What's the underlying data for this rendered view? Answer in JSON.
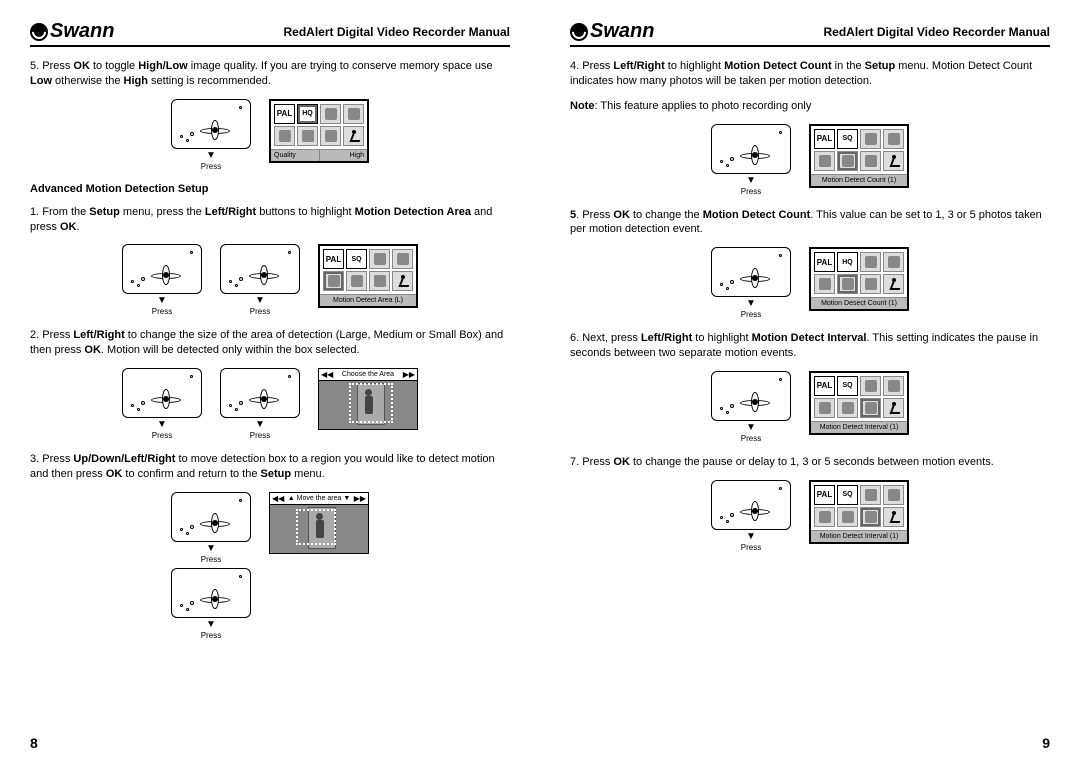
{
  "brand": "Swann",
  "manual_title": "RedAlert Digital Video Recorder Manual",
  "press_label": "Press",
  "left": {
    "page_num": "8",
    "step5": "5. Press <b>OK</b> to toggle <b>High/Low</b> image quality. If you are trying to conserve memory space use <b>Low</b> otherwise the <b>High</b> setting is recommended.",
    "screen1": {
      "footer_l": "Quality",
      "footer_r": "High",
      "pal": "PAL",
      "hq": "HQ"
    },
    "heading": "Advanced Motion Detection Setup",
    "step1": "1. From the <b>Setup</b> menu, press the <b>Left/Right</b> buttons to highlight <b>Motion Detection Area</b> and press <b>OK</b>.",
    "screen2": {
      "footer": "Motion Detect Area (L)",
      "pal": "PAL",
      "hq": "SQ"
    },
    "step2": "2. Press <b>Left/Right</b> to change the size of the area of detection (Large, Medium or Small Box) and then press <b>OK</b>.  Motion will be detected only within the box selected.",
    "room1_header": "Choose the Area",
    "step3": "3. Press <b>Up/Down/Left/Right</b> to move detection box to a region you would like to detect motion and then press <b>OK</b> to confirm and return to the <b>Setup</b> menu.",
    "room2_header": "Move the area"
  },
  "right": {
    "page_num": "9",
    "step4": "4. Press <b>Left/Right</b> to highlight <b>Motion Detect Count</b> in the <b>Setup</b> menu.  Motion Detect Count indicates how many photos will be taken per motion detection.",
    "note": "<b>Note</b>: This feature applies to photo recording only",
    "screen1": {
      "footer": "Motion Detect Count (1)",
      "pal": "PAL",
      "hq": "SQ"
    },
    "step5": "<b>5</b>. Press <b>OK</b> to change the <b>Motion Detect Count</b>.  This value can be set to 1, 3 or 5 photos taken per motion detection event.",
    "screen2": {
      "footer": "Motion Desect Count (1)",
      "pal": "PAL",
      "hq": "HQ"
    },
    "step6": "6. Next, press <b>Left/Right</b> to highlight <b>Motion Detect Interval</b>. This setting indicates the pause in seconds between two separate motion events.",
    "screen3": {
      "footer": "Motion Detect Interval (1)",
      "pal": "PAL",
      "hq": "SQ"
    },
    "step7": "7. Press <b>OK</b> to change the pause or delay to 1, 3 or 5 seconds between motion events.",
    "screen4": {
      "footer": "Motion Detect Interval (1)",
      "pal": "PAL",
      "hq": "SQ"
    }
  }
}
